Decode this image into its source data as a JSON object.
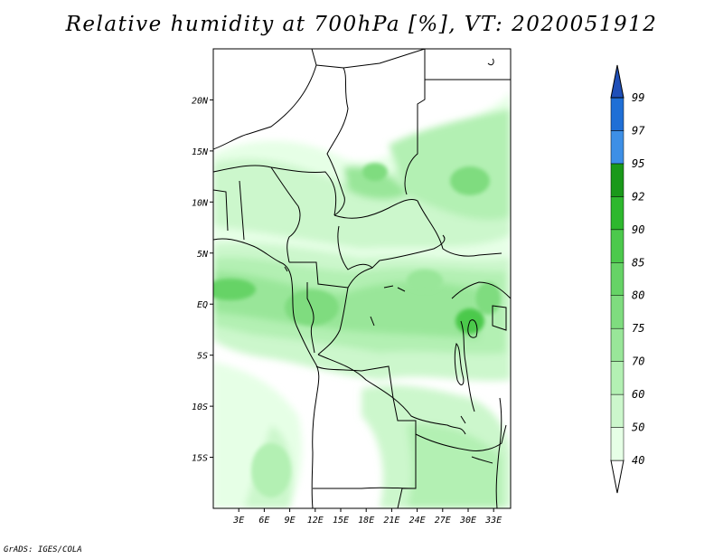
{
  "title": "Relative humidity at 700hPa [%], VT: 2020051912",
  "credit": "GrADS: IGES/COLA",
  "map": {
    "lat_range": [
      -20,
      25
    ],
    "lon_range": [
      0,
      35
    ],
    "lat_ticks": [
      {
        "value": 20,
        "label": "20N"
      },
      {
        "value": 15,
        "label": "15N"
      },
      {
        "value": 10,
        "label": "10N"
      },
      {
        "value": 5,
        "label": "5N"
      },
      {
        "value": 0,
        "label": "EQ"
      },
      {
        "value": -5,
        "label": "5S"
      },
      {
        "value": -10,
        "label": "10S"
      },
      {
        "value": -15,
        "label": "15S"
      }
    ],
    "lon_ticks": [
      {
        "value": 3,
        "label": "3E"
      },
      {
        "value": 6,
        "label": "6E"
      },
      {
        "value": 9,
        "label": "9E"
      },
      {
        "value": 12,
        "label": "12E"
      },
      {
        "value": 15,
        "label": "15E"
      },
      {
        "value": 18,
        "label": "18E"
      },
      {
        "value": 21,
        "label": "21E"
      },
      {
        "value": 24,
        "label": "24E"
      },
      {
        "value": 27,
        "label": "27E"
      },
      {
        "value": 30,
        "label": "30E"
      },
      {
        "value": 33,
        "label": "33E"
      }
    ]
  },
  "colorbar": {
    "levels": [
      "40",
      "50",
      "60",
      "70",
      "75",
      "80",
      "85",
      "90",
      "92",
      "95",
      "97",
      "99"
    ],
    "colors": [
      "#ffffff",
      "#e6ffe6",
      "#ccf7cc",
      "#b3f0b3",
      "#99e699",
      "#7fdc7f",
      "#66d366",
      "#4cc94c",
      "#2eb82e",
      "#1a991a",
      "#3d8fe6",
      "#1f6fd6",
      "#1f4fb8"
    ]
  },
  "colors": {
    "land_outline": "#000000",
    "background": "#ffffff"
  }
}
